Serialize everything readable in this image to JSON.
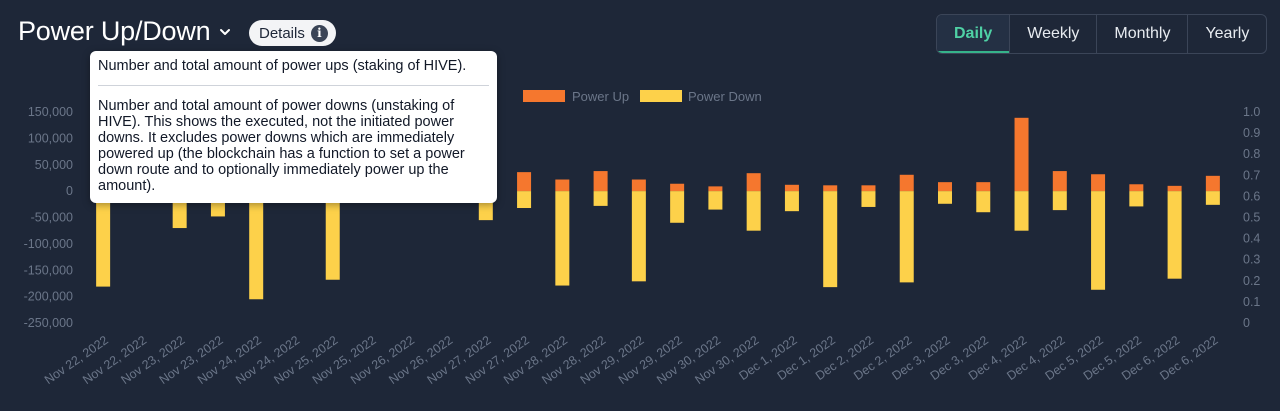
{
  "header": {
    "title": "Power Up/Down",
    "details_label": "Details",
    "info_icon": "i"
  },
  "period_tabs": [
    {
      "label": "Daily",
      "active": true
    },
    {
      "label": "Weekly",
      "active": false
    },
    {
      "label": "Monthly",
      "active": false
    },
    {
      "label": "Yearly",
      "active": false
    }
  ],
  "tooltip": {
    "power_up_text": "Number and total amount of power ups (staking of HIVE).",
    "power_down_text": "Number and total amount of power downs (unstaking of HIVE). This shows the executed, not the initiated power downs. It excludes power downs which are immediately powered up (the blockchain has a function to set a power down route and to optionally immediately power up the amount)."
  },
  "chart_data": {
    "type": "bar",
    "legend_position": "top-center",
    "colors": {
      "power_up": "#f5772e",
      "power_down": "#fdd14a"
    },
    "categories": [
      "Nov 22, 2022",
      "Nov 22, 2022",
      "Nov 23, 2022",
      "Nov 23, 2022",
      "Nov 24, 2022",
      "Nov 24, 2022",
      "Nov 25, 2022",
      "Nov 25, 2022",
      "Nov 26, 2022",
      "Nov 26, 2022",
      "Nov 27, 2022",
      "Nov 27, 2022",
      "Nov 28, 2022",
      "Nov 28, 2022",
      "Nov 29, 2022",
      "Nov 29, 2022",
      "Nov 30, 2022",
      "Nov 30, 2022",
      "Dec 1, 2022",
      "Dec 1, 2022",
      "Dec 2, 2022",
      "Dec 2, 2022",
      "Dec 3, 2022",
      "Dec 3, 2022",
      "Dec 4, 2022",
      "Dec 4, 2022",
      "Dec 5, 2022",
      "Dec 5, 2022",
      "Dec 6, 2022",
      "Dec 6, 2022"
    ],
    "series": [
      {
        "name": "Power Up",
        "key": "power_up",
        "values": [
          8000,
          6000,
          5000,
          7000,
          6000,
          9000,
          5000,
          8000,
          6000,
          5000,
          6000,
          36000,
          22000,
          38000,
          22000,
          14000,
          9000,
          34000,
          12000,
          11000,
          11000,
          31000,
          17000,
          17000,
          139000,
          38000,
          32000,
          13000,
          10000,
          29000
        ]
      },
      {
        "name": "Power Down",
        "key": "power_down",
        "values": [
          -181000,
          -6000,
          -70000,
          -48000,
          -205000,
          -5000,
          -168000,
          -6000,
          -5000,
          -8000,
          -55000,
          -32000,
          -179000,
          -28000,
          -171000,
          -60000,
          -35000,
          -75000,
          -38000,
          -182000,
          -30000,
          -173000,
          -24000,
          -40000,
          -75000,
          -36000,
          -187000,
          -29000,
          -166000,
          -26000
        ]
      }
    ],
    "y_left": {
      "min": -250000,
      "max": 150000,
      "step": 50000,
      "tick_labels": [
        "150,000",
        "100,000",
        "50,000",
        "0",
        "-50,000",
        "-100,000",
        "-150,000",
        "-200,000",
        "-250,000"
      ]
    },
    "y_right": {
      "min": 0,
      "max": 1,
      "step": 0.1,
      "tick_labels": [
        "1.0",
        "0.9",
        "0.8",
        "0.7",
        "0.6",
        "0.5",
        "0.4",
        "0.3",
        "0.2",
        "0.1",
        "0"
      ]
    },
    "grid": false
  }
}
